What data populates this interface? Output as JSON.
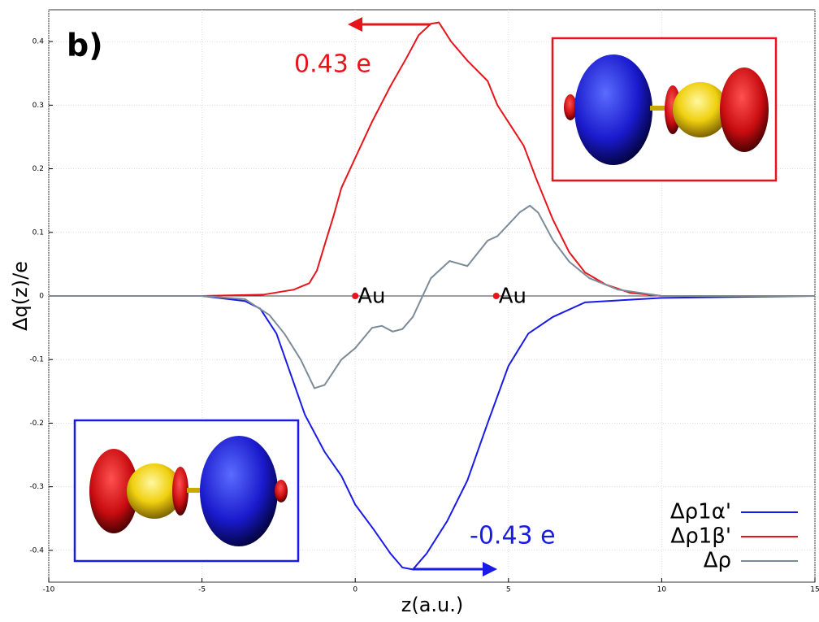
{
  "chart_data": {
    "type": "line",
    "panel_label": "b)",
    "xlabel": "z(a.u.)",
    "ylabel": "Δq(z)/e",
    "xlim": [
      -10,
      15
    ],
    "xticks": [
      -10,
      -5,
      0,
      5,
      10,
      15
    ],
    "ylim": [
      -0.45,
      0.45
    ],
    "yticks": [
      -0.4,
      -0.3,
      -0.2,
      -0.1,
      0,
      0.1,
      0.2,
      0.3,
      0.4
    ],
    "grid": true,
    "legend": "lower right",
    "series": [
      {
        "name": "Δρ1α'",
        "color": "#1a1ae6",
        "x": [
          -10,
          -5,
          -3.6,
          -3.1,
          -2.57,
          -2.2,
          -1.64,
          -1,
          -0.45,
          0,
          0.6,
          1.15,
          1.54,
          1.88,
          2.33,
          3,
          3.66,
          4.32,
          5,
          5.65,
          6.45,
          7.5,
          10,
          15
        ],
        "values": [
          0,
          0,
          -0.008,
          -0.02,
          -0.059,
          -0.11,
          -0.187,
          -0.245,
          -0.283,
          -0.328,
          -0.367,
          -0.405,
          -0.427,
          -0.43,
          -0.405,
          -0.354,
          -0.29,
          -0.2,
          -0.11,
          -0.059,
          -0.033,
          -0.01,
          -0.003,
          0
        ]
      },
      {
        "name": "Δρ1β'",
        "color": "#e8141c",
        "x": [
          -10,
          -5,
          -3,
          -2,
          -1.5,
          -1.25,
          -1,
          -0.7,
          -0.45,
          0,
          0.55,
          1.15,
          1.67,
          2.07,
          2.47,
          2.73,
          3.13,
          3.66,
          4.32,
          4.64,
          4.99,
          5.5,
          5.9,
          6.45,
          6.98,
          7.5,
          8.17,
          8.97,
          10,
          15
        ],
        "values": [
          0,
          0,
          0.002,
          0.01,
          0.02,
          0.04,
          0.08,
          0.127,
          0.17,
          0.217,
          0.274,
          0.33,
          0.374,
          0.41,
          0.428,
          0.43,
          0.4,
          0.37,
          0.338,
          0.3,
          0.274,
          0.236,
          0.185,
          0.12,
          0.069,
          0.037,
          0.018,
          0.005,
          0,
          0
        ]
      },
      {
        "name": "Δρ",
        "color": "#7d8b99",
        "x": [
          -10,
          -5,
          -3.6,
          -2.8,
          -2.3,
          -1.78,
          -1.33,
          -1,
          -0.45,
          0,
          0.55,
          0.87,
          1.22,
          1.54,
          1.88,
          2.47,
          3.08,
          3.66,
          4.32,
          4.64,
          5.38,
          5.7,
          5.97,
          6.45,
          6.98,
          7.64,
          8.57,
          10,
          15
        ],
        "values": [
          0,
          0,
          -0.005,
          -0.03,
          -0.06,
          -0.1,
          -0.145,
          -0.14,
          -0.1,
          -0.082,
          -0.05,
          -0.047,
          -0.056,
          -0.052,
          -0.033,
          0.028,
          0.055,
          0.047,
          0.087,
          0.094,
          0.132,
          0.142,
          0.131,
          0.088,
          0.054,
          0.028,
          0.01,
          0,
          0
        ]
      }
    ],
    "annotations": [
      "0.43 e",
      "-0.43 e"
    ],
    "atoms": [
      {
        "label": "Au",
        "x": 0,
        "y": 0
      },
      {
        "label": "Au",
        "x": 4.6,
        "y": 0
      }
    ]
  }
}
